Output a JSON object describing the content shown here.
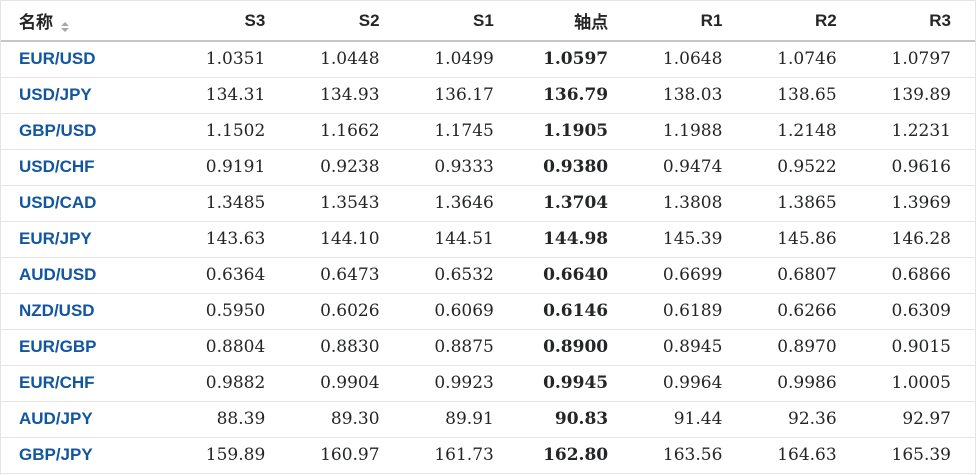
{
  "table": {
    "columns": [
      {
        "id": "name",
        "label": "名称",
        "align": "left",
        "sortable": true
      },
      {
        "id": "s3",
        "label": "S3",
        "align": "right"
      },
      {
        "id": "s2",
        "label": "S2",
        "align": "right"
      },
      {
        "id": "s1",
        "label": "S1",
        "align": "right"
      },
      {
        "id": "pivot",
        "label": "轴点",
        "align": "right",
        "bold": true
      },
      {
        "id": "r1",
        "label": "R1",
        "align": "right"
      },
      {
        "id": "r2",
        "label": "R2",
        "align": "right"
      },
      {
        "id": "r3",
        "label": "R3",
        "align": "right"
      }
    ],
    "rows": [
      {
        "name": "EUR/USD",
        "s3": "1.0351",
        "s2": "1.0448",
        "s1": "1.0499",
        "pivot": "1.0597",
        "r1": "1.0648",
        "r2": "1.0746",
        "r3": "1.0797"
      },
      {
        "name": "USD/JPY",
        "s3": "134.31",
        "s2": "134.93",
        "s1": "136.17",
        "pivot": "136.79",
        "r1": "138.03",
        "r2": "138.65",
        "r3": "139.89"
      },
      {
        "name": "GBP/USD",
        "s3": "1.1502",
        "s2": "1.1662",
        "s1": "1.1745",
        "pivot": "1.1905",
        "r1": "1.1988",
        "r2": "1.2148",
        "r3": "1.2231"
      },
      {
        "name": "USD/CHF",
        "s3": "0.9191",
        "s2": "0.9238",
        "s1": "0.9333",
        "pivot": "0.9380",
        "r1": "0.9474",
        "r2": "0.9522",
        "r3": "0.9616"
      },
      {
        "name": "USD/CAD",
        "s3": "1.3485",
        "s2": "1.3543",
        "s1": "1.3646",
        "pivot": "1.3704",
        "r1": "1.3808",
        "r2": "1.3865",
        "r3": "1.3969"
      },
      {
        "name": "EUR/JPY",
        "s3": "143.63",
        "s2": "144.10",
        "s1": "144.51",
        "pivot": "144.98",
        "r1": "145.39",
        "r2": "145.86",
        "r3": "146.28"
      },
      {
        "name": "AUD/USD",
        "s3": "0.6364",
        "s2": "0.6473",
        "s1": "0.6532",
        "pivot": "0.6640",
        "r1": "0.6699",
        "r2": "0.6807",
        "r3": "0.6866"
      },
      {
        "name": "NZD/USD",
        "s3": "0.5950",
        "s2": "0.6026",
        "s1": "0.6069",
        "pivot": "0.6146",
        "r1": "0.6189",
        "r2": "0.6266",
        "r3": "0.6309"
      },
      {
        "name": "EUR/GBP",
        "s3": "0.8804",
        "s2": "0.8830",
        "s1": "0.8875",
        "pivot": "0.8900",
        "r1": "0.8945",
        "r2": "0.8970",
        "r3": "0.9015"
      },
      {
        "name": "EUR/CHF",
        "s3": "0.9882",
        "s2": "0.9904",
        "s1": "0.9923",
        "pivot": "0.9945",
        "r1": "0.9964",
        "r2": "0.9986",
        "r3": "1.0005"
      },
      {
        "name": "AUD/JPY",
        "s3": "88.39",
        "s2": "89.30",
        "s1": "89.91",
        "pivot": "90.83",
        "r1": "91.44",
        "r2": "92.36",
        "r3": "92.97"
      },
      {
        "name": "GBP/JPY",
        "s3": "159.89",
        "s2": "160.97",
        "s1": "161.73",
        "pivot": "162.80",
        "r1": "163.56",
        "r2": "164.63",
        "r3": "165.39"
      }
    ]
  },
  "icons": {
    "sort": "sort-arrows-icon"
  },
  "colors": {
    "link_blue": "#1256a0",
    "text_dark": "#232526",
    "header_text": "#262626",
    "row_border": "#e6e6e6",
    "header_border": "#c6c6c6",
    "outer_border": "#e4e4e4",
    "sort_gray": "#a8a8a8"
  }
}
